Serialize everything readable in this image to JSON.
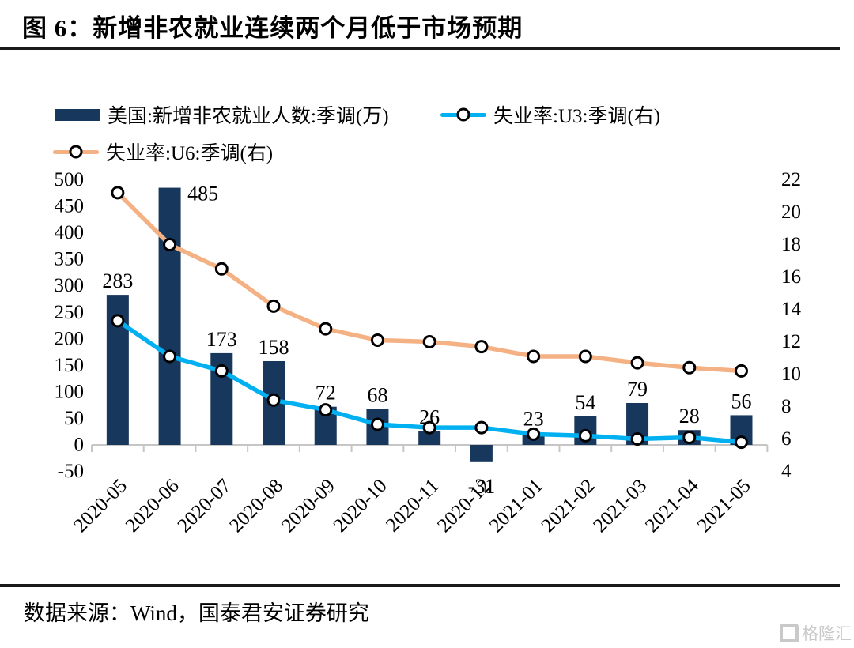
{
  "header": {
    "title": "图 6：新增非农就业连续两个月低于市场预期"
  },
  "footer": {
    "source": "数据来源：Wind，国泰君安证券研究"
  },
  "watermark": {
    "text": "格隆汇",
    "logo": "gelonghui-G"
  },
  "colors": {
    "bar": "#17375d",
    "u3_line": "#00b0f0",
    "u6_line": "#f4b183",
    "axis": "#c6c6c6",
    "rule": "#1a1a1a",
    "marker_fill": "#ffffff",
    "marker_stroke": "#000000",
    "watermark": "#c9c9c9"
  },
  "chart_data": {
    "type": "combo",
    "title": "新增非农就业连续两个月低于市场预期",
    "categories": [
      "2020-05",
      "2020-06",
      "2020-07",
      "2020-08",
      "2020-09",
      "2020-10",
      "2020-11",
      "2020-12",
      "2021-01",
      "2021-02",
      "2021-03",
      "2021-04",
      "2021-05"
    ],
    "series": [
      {
        "name": "美国:新增非农就业人数:季调(万)",
        "type": "bar",
        "axis": "left",
        "color": "#17375d",
        "values": [
          283,
          485,
          173,
          158,
          72,
          68,
          26,
          -31,
          23,
          54,
          79,
          28,
          56
        ],
        "data_labels": true
      },
      {
        "name": "失业率:U3:季调(右)",
        "type": "line",
        "axis": "right",
        "color": "#00b0f0",
        "values": [
          13.3,
          11.1,
          10.2,
          8.4,
          7.8,
          6.9,
          6.7,
          6.7,
          6.3,
          6.2,
          6.0,
          6.1,
          5.8
        ]
      },
      {
        "name": "失业率:U6:季调(右)",
        "type": "line",
        "axis": "right",
        "color": "#f4b183",
        "values": [
          21.2,
          18.0,
          16.5,
          14.2,
          12.8,
          12.1,
          12.0,
          11.7,
          11.1,
          11.1,
          10.7,
          10.4,
          10.2
        ]
      }
    ],
    "left_axis": {
      "min": -50,
      "max": 500,
      "step": 50,
      "ticks": [
        500,
        450,
        400,
        350,
        300,
        250,
        200,
        150,
        100,
        50,
        0,
        -50
      ]
    },
    "right_axis": {
      "min": 4,
      "max": 22,
      "step": 2,
      "ticks": [
        22,
        20,
        18,
        16,
        14,
        12,
        10,
        8,
        6,
        4
      ]
    },
    "grid": false,
    "legend_position": "top-left",
    "x_label_rotation": -45
  }
}
